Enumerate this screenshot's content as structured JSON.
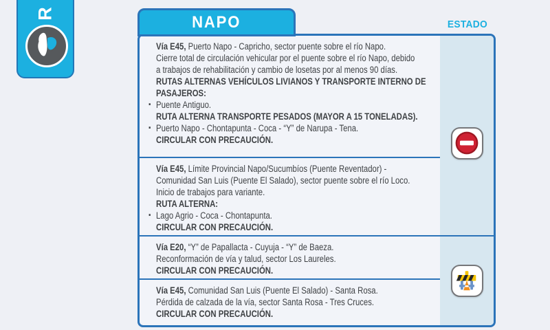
{
  "sidebar_card": {
    "vertical_label": "R",
    "map_icon": "ecuador-map-icon"
  },
  "header": {
    "province_tab": "NAPO",
    "estado_label": "ESTADO"
  },
  "colors": {
    "cyan": "#1cb0e0",
    "border_blue": "#2b74b9",
    "estado_column_bg": "#d7e7f0",
    "board_bg": "#f2f4f9",
    "page_bg": "#eef0f5",
    "text": "#3f4245",
    "no_entry_red": "#cf2233",
    "barrier_yellow": "#f5c400"
  },
  "statuses": [
    {
      "icon_name": "no-entry-icon",
      "applies_to_rows": [
        0,
        1
      ]
    },
    {
      "icon_name": "construction-barrier-icon",
      "applies_to_rows": [
        2,
        3
      ]
    }
  ],
  "rows": [
    {
      "lines": [
        {
          "t": "lead",
          "b": "Vía E45,",
          "x": " Puerto Napo - Capricho, sector puente sobre el río Napo."
        },
        {
          "t": "plain",
          "x": "Cierre total de circulación vehicular por el puente sobre el río Napo, debido"
        },
        {
          "t": "plain",
          "x": "a trabajos de rehabilitación y cambio de losetas por al menos 90 días."
        },
        {
          "t": "caps",
          "x": "RUTAS ALTERNAS VEHÍCULOS LIVIANOS Y TRANSPORTE INTERNO DE"
        },
        {
          "t": "caps",
          "x": "PASAJEROS:"
        },
        {
          "t": "bullet",
          "x": "Puente Antiguo."
        },
        {
          "t": "caps",
          "x": "RUTA ALTERNA TRANSPORTE PESADOS (MAYOR A 15 TONELADAS)."
        },
        {
          "t": "bullet",
          "x": "Puerto Napo - Chontapunta - Coca - “Y” de Narupa - Tena."
        },
        {
          "t": "caps",
          "x": "CIRCULAR CON PRECAUCIÓN."
        }
      ]
    },
    {
      "lines": [
        {
          "t": "lead",
          "b": "Vía E45,",
          "x": " Límite Provincial Napo/Sucumbíos (Puente Reventador) -"
        },
        {
          "t": "plain",
          "x": "Comunidad San Luis (Puente El Salado), sector puente sobre el río Loco."
        },
        {
          "t": "plain",
          "x": "Inicio de trabajos para variante."
        },
        {
          "t": "caps",
          "x": "RUTA ALTERNA:"
        },
        {
          "t": "bullet",
          "x": "Lago Agrio - Coca - Chontapunta."
        },
        {
          "t": "caps",
          "x": "CIRCULAR CON PRECAUCIÓN."
        }
      ]
    },
    {
      "lines": [
        {
          "t": "lead",
          "b": "Vía E20,",
          "x": " “Y” de Papallacta - Cuyuja - “Y” de Baeza."
        },
        {
          "t": "plain",
          "x": "Reconformación de vía y talud, sector Los Laureles."
        },
        {
          "t": "caps",
          "x": "CIRCULAR CON PRECAUCIÓN."
        }
      ]
    },
    {
      "lines": [
        {
          "t": "lead",
          "b": "Vía E45,",
          "x": " Comunidad San Luis (Puente El Salado) - Santa Rosa."
        },
        {
          "t": "plain",
          "x": "Pérdida de calzada de la vía, sector Santa Rosa - Tres Cruces."
        },
        {
          "t": "caps",
          "x": "CIRCULAR CON PRECAUCIÓN."
        }
      ]
    }
  ]
}
